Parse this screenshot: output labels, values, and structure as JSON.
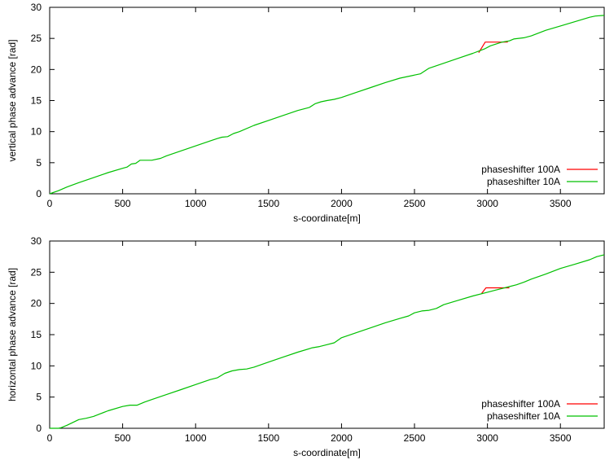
{
  "chart_data": [
    {
      "type": "line",
      "xlabel": "s-coordinate[m]",
      "ylabel": "vertical phase advance [rad]",
      "xlim": [
        0,
        3800
      ],
      "ylim": [
        0,
        30
      ],
      "xticks": [
        0,
        500,
        1000,
        1500,
        2000,
        2500,
        3000,
        3500
      ],
      "yticks": [
        0,
        5,
        10,
        15,
        20,
        25,
        30
      ],
      "grid": false,
      "legend_position": "bottom-right",
      "series": [
        {
          "name": "phaseshifter 100A",
          "color": "#ff0000",
          "x": [
            2940,
            2985,
            3060,
            3140
          ],
          "y": [
            22.7,
            24.4,
            24.4,
            24.4
          ]
        },
        {
          "name": "phaseshifter 10A",
          "color": "#00c000",
          "x": [
            0,
            60,
            120,
            200,
            300,
            400,
            500,
            530,
            560,
            590,
            620,
            700,
            760,
            800,
            900,
            1000,
            1100,
            1150,
            1180,
            1220,
            1260,
            1300,
            1400,
            1500,
            1600,
            1700,
            1780,
            1820,
            1860,
            1900,
            1950,
            2000,
            2100,
            2200,
            2300,
            2400,
            2500,
            2540,
            2560,
            2600,
            2700,
            2800,
            2900,
            2980,
            3020,
            3100,
            3150,
            3180,
            3250,
            3300,
            3400,
            3500,
            3600,
            3700,
            3740,
            3800
          ],
          "y": [
            0,
            0.5,
            1.1,
            1.8,
            2.6,
            3.4,
            4.1,
            4.3,
            4.8,
            4.9,
            5.4,
            5.4,
            5.7,
            6.1,
            6.9,
            7.7,
            8.5,
            8.9,
            9.1,
            9.2,
            9.7,
            10.0,
            11.0,
            11.8,
            12.6,
            13.4,
            13.9,
            14.5,
            14.8,
            15.0,
            15.2,
            15.5,
            16.3,
            17.1,
            17.9,
            18.6,
            19.1,
            19.3,
            19.6,
            20.2,
            21.0,
            21.8,
            22.6,
            23.3,
            23.8,
            24.4,
            24.6,
            24.9,
            25.1,
            25.4,
            26.3,
            27.0,
            27.7,
            28.4,
            28.6,
            28.7
          ]
        }
      ]
    },
    {
      "type": "line",
      "xlabel": "s-coordinate[m]",
      "ylabel": "horizontal phase advance [rad]",
      "xlim": [
        0,
        3800
      ],
      "ylim": [
        0,
        30
      ],
      "xticks": [
        0,
        500,
        1000,
        1500,
        2000,
        2500,
        3000,
        3500
      ],
      "yticks": [
        0,
        5,
        10,
        15,
        20,
        25,
        30
      ],
      "grid": false,
      "legend_position": "bottom-right",
      "series": [
        {
          "name": "phaseshifter 100A",
          "color": "#ff0000",
          "x": [
            2960,
            2990,
            3080,
            3150
          ],
          "y": [
            21.6,
            22.5,
            22.5,
            22.5
          ]
        },
        {
          "name": "phaseshifter 10A",
          "color": "#00c000",
          "x": [
            0,
            60,
            80,
            120,
            200,
            250,
            300,
            400,
            500,
            550,
            600,
            650,
            700,
            800,
            900,
            1000,
            1100,
            1150,
            1200,
            1250,
            1300,
            1350,
            1400,
            1500,
            1600,
            1700,
            1800,
            1850,
            1900,
            1950,
            2000,
            2100,
            2200,
            2300,
            2400,
            2460,
            2500,
            2550,
            2600,
            2650,
            2700,
            2800,
            2900,
            3000,
            3050,
            3100,
            3150,
            3200,
            3250,
            3300,
            3400,
            3500,
            3600,
            3700,
            3750,
            3800
          ],
          "y": [
            0,
            0,
            0.1,
            0.5,
            1.4,
            1.6,
            1.9,
            2.8,
            3.5,
            3.7,
            3.7,
            4.2,
            4.6,
            5.4,
            6.2,
            7.0,
            7.8,
            8.1,
            8.8,
            9.2,
            9.4,
            9.5,
            9.8,
            10.6,
            11.4,
            12.2,
            12.9,
            13.1,
            13.4,
            13.7,
            14.5,
            15.3,
            16.1,
            16.9,
            17.6,
            18.0,
            18.5,
            18.8,
            18.9,
            19.2,
            19.8,
            20.5,
            21.2,
            21.8,
            22.1,
            22.4,
            22.7,
            23.0,
            23.4,
            23.9,
            24.7,
            25.6,
            26.3,
            27.0,
            27.5,
            27.8
          ]
        }
      ]
    }
  ]
}
